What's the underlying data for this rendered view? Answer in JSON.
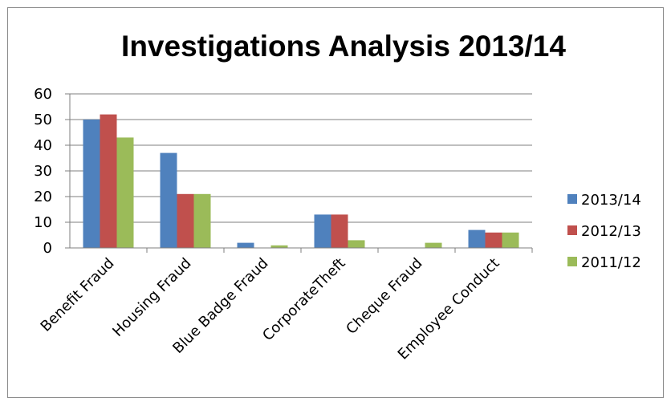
{
  "chart_data": {
    "type": "bar",
    "title": "Investigations Analysis 2013/14",
    "xlabel": "",
    "ylabel": "",
    "categories": [
      "Benefit Fraud",
      "Housing Fraud",
      "Blue Badge Fraud",
      "CorporateTheft",
      "Cheque Fraud",
      "Employee Conduct"
    ],
    "series": [
      {
        "name": "2013/14",
        "color": "#4F81BD",
        "values": [
          50,
          37,
          2,
          13,
          0,
          7
        ]
      },
      {
        "name": "2012/13",
        "color": "#C0504D",
        "values": [
          52,
          21,
          0,
          13,
          0,
          6
        ]
      },
      {
        "name": "2011/12",
        "color": "#9BBB59",
        "values": [
          43,
          21,
          1,
          3,
          2,
          6
        ]
      }
    ],
    "ylim": [
      0,
      60
    ],
    "yticks": [
      "0",
      "10",
      "20",
      "30",
      "40",
      "50",
      "60"
    ],
    "grid": true,
    "legend_position": "right"
  }
}
